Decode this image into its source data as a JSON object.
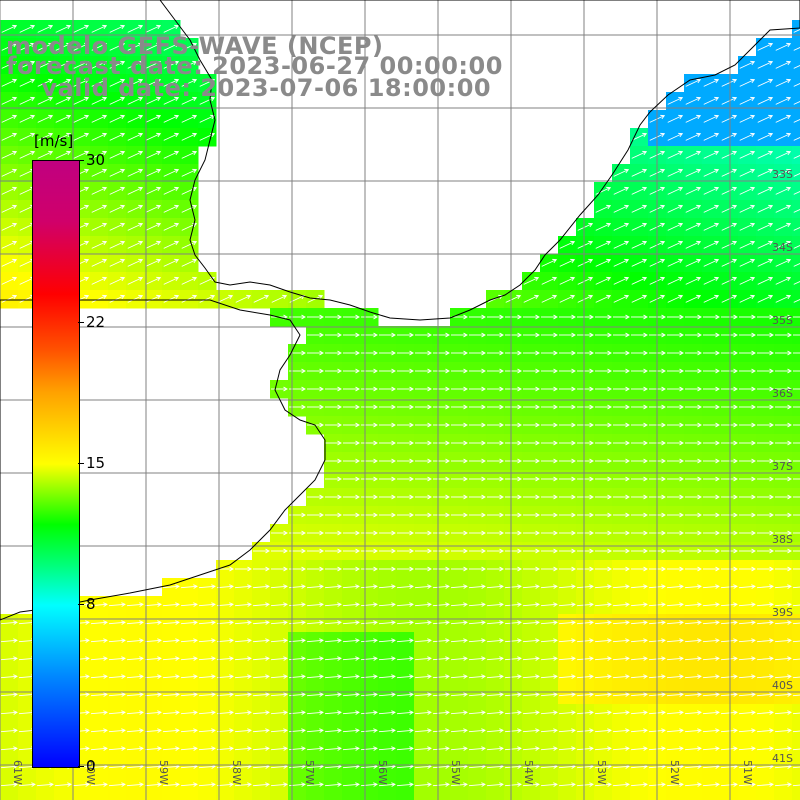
{
  "title": {
    "line1": "modelo GEFS-WAVE (NCEP)",
    "line2": "forecast date: 2023-06-27 00:00:00",
    "line3": "    valid date: 2023-07-06 18:00:00"
  },
  "colorbar": {
    "unit": "[m/s]",
    "ticks": [
      {
        "label": "30",
        "value": 30
      },
      {
        "label": "22",
        "value": 22
      },
      {
        "label": "15",
        "value": 15
      },
      {
        "label": "8",
        "value": 8
      },
      {
        "label": "0",
        "value": 0
      }
    ],
    "range": [
      0,
      30
    ]
  },
  "map": {
    "lon_labels": [
      "61W",
      "60W",
      "59W",
      "58W",
      "57W",
      "56W",
      "55W",
      "54W",
      "53W",
      "52W",
      "51W"
    ],
    "lat_labels": [
      "33S",
      "34S",
      "35S",
      "36S",
      "37S",
      "38S",
      "39S",
      "40S",
      "41S"
    ],
    "lon_range": [
      -61.5,
      -50.5
    ],
    "lat_range": [
      -41.5,
      -30.5
    ],
    "field": "wind speed with direction arrows",
    "arrow_color": "#ffffff",
    "land_color": "#ffffff",
    "grid_color": "#808080",
    "coast_color": "#000000"
  }
}
